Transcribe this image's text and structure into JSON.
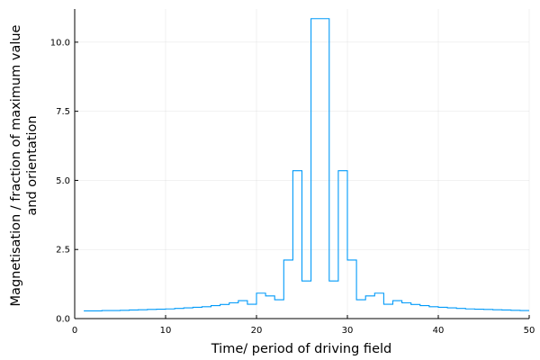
{
  "chart_data": {
    "type": "line",
    "step": "post",
    "title": "",
    "xlabel": "Time/ period of driving field",
    "ylabel_lines": [
      "Magnetisation / fraction of maximum value",
      "and orientation"
    ],
    "xlim": [
      0,
      50
    ],
    "ylim": [
      0,
      11.2
    ],
    "xticks": [
      0,
      10,
      20,
      30,
      40,
      50
    ],
    "xtick_labels": [
      "0",
      "10",
      "20",
      "30",
      "40",
      "50"
    ],
    "yticks": [
      0,
      2.5,
      5,
      7.5,
      10
    ],
    "ytick_labels": [
      "0.0",
      "2.5",
      "5.0",
      "7.5",
      "10.0"
    ],
    "grid": true,
    "legend": "none",
    "series": [
      {
        "color": "#009af9",
        "x": [
          1,
          2,
          3,
          4,
          5,
          6,
          7,
          8,
          9,
          10,
          11,
          12,
          13,
          14,
          15,
          16,
          17,
          18,
          19,
          20,
          21,
          22,
          23,
          24,
          25,
          26,
          27,
          28,
          29,
          30,
          31,
          32,
          33,
          34,
          35,
          36,
          37,
          38,
          39,
          40,
          41,
          42,
          43,
          44,
          45,
          46,
          47,
          48,
          49,
          50
        ],
        "y": [
          0.28,
          0.28,
          0.29,
          0.29,
          0.3,
          0.31,
          0.32,
          0.33,
          0.34,
          0.35,
          0.37,
          0.39,
          0.41,
          0.43,
          0.47,
          0.51,
          0.57,
          0.65,
          0.52,
          0.92,
          0.82,
          0.68,
          2.12,
          5.35,
          1.36,
          10.85,
          10.85,
          1.36,
          5.35,
          2.12,
          0.68,
          0.82,
          0.92,
          0.52,
          0.65,
          0.57,
          0.51,
          0.47,
          0.43,
          0.41,
          0.39,
          0.37,
          0.35,
          0.34,
          0.33,
          0.32,
          0.31,
          0.3,
          0.29,
          0.29
        ]
      }
    ]
  }
}
